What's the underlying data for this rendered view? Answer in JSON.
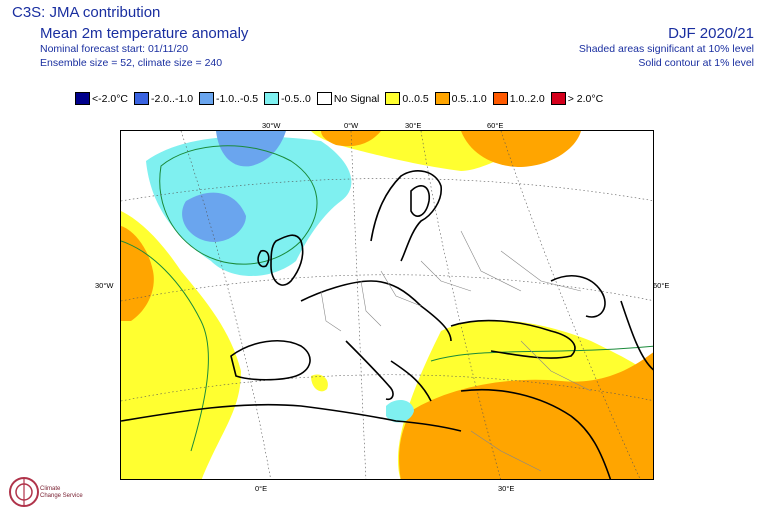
{
  "header": {
    "title": "C3S: JMA contribution",
    "subtitle": "Mean 2m temperature anomaly",
    "forecast_start": "Nominal forecast start: 01/11/20",
    "ensemble": "Ensemble size = 52, climate size = 240",
    "period": "DJF 2020/21",
    "shading_note": "Shaded areas significant at 10% level",
    "contour_note": "Solid contour at 1% level"
  },
  "legend": [
    {
      "label": "<-2.0°C",
      "color": "#00008b"
    },
    {
      "label": "-2.0..-1.0",
      "color": "#3a63e0"
    },
    {
      "label": "-1.0..-0.5",
      "color": "#6aa5ee"
    },
    {
      "label": "-0.5..0",
      "color": "#7ff0f0"
    },
    {
      "label": "No Signal",
      "color": "#ffffff"
    },
    {
      "label": "0..0.5",
      "color": "#ffff30"
    },
    {
      "label": "0.5..1.0",
      "color": "#ffa500"
    },
    {
      "label": "1.0..2.0",
      "color": "#ff5a00"
    },
    {
      "label": "> 2.0°C",
      "color": "#d4001c"
    }
  ],
  "axis_labels": {
    "top": [
      "30°W",
      "0°W",
      "30°E",
      "60°E"
    ],
    "left": "30°W",
    "right": "60°E",
    "bottom": [
      "0°E",
      "30°E"
    ]
  },
  "logo": {
    "line1": "Climate",
    "line2": "Change Service"
  }
}
